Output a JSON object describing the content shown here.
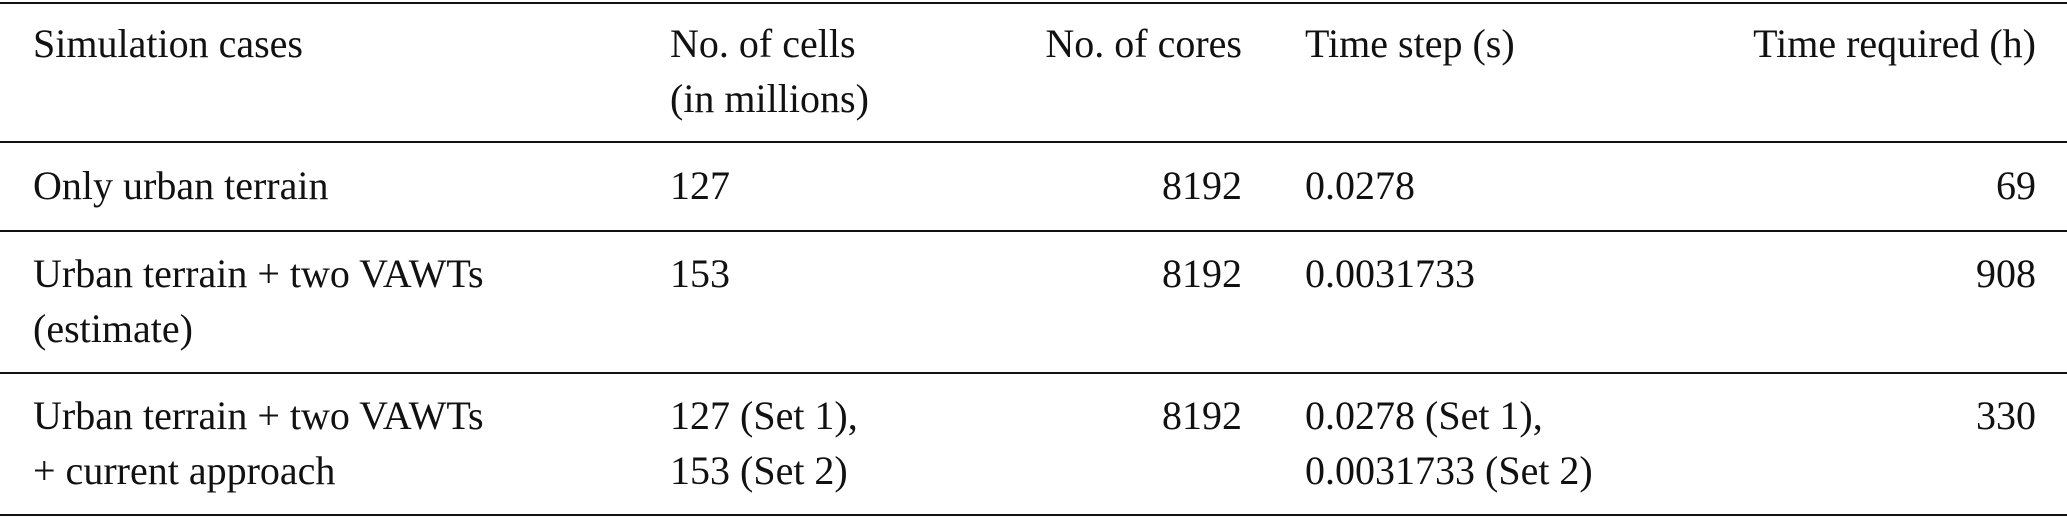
{
  "table": {
    "header": [
      "Simulation cases",
      [
        "No. of cells",
        "(in millions)"
      ],
      "No. of cores",
      "Time step (s)",
      "Time required (h)"
    ],
    "rows": [
      [
        "Only urban terrain",
        "127",
        "8192",
        "0.0278",
        "69"
      ],
      [
        [
          "Urban terrain + two VAWTs",
          "(estimate)"
        ],
        "153",
        "8192",
        "0.0031733",
        "908"
      ],
      [
        [
          "Urban terrain + two VAWTs",
          "+ current approach"
        ],
        [
          "127 (Set 1),",
          "153 (Set 2)"
        ],
        "8192",
        [
          "0.0278 (Set 1),",
          "0.0031733 (Set 2)"
        ],
        "330"
      ]
    ]
  }
}
